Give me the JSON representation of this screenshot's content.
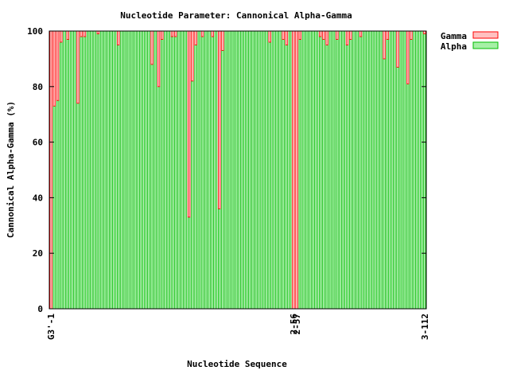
{
  "chart_data": {
    "type": "bar",
    "stacked": true,
    "title": "Nucleotide Parameter: Cannonical Alpha-Gamma",
    "xlabel": "Nucleotide Sequence",
    "ylabel": "Cannonical Alpha-Gamma (%)",
    "ylim": [
      0,
      100
    ],
    "yticks": [
      "0",
      "20",
      "40",
      "60",
      "80",
      "100"
    ],
    "grid": false,
    "legend_position": "top-right, outside plot",
    "xtick_labels": [
      "G3'-1",
      "2-56",
      "2-57",
      "3-112"
    ],
    "categories_count": 112,
    "series": [
      {
        "name": "Gamma",
        "color": "#ff0000",
        "fill": "#ffc0c0",
        "values": [
          100,
          27,
          25,
          4,
          0,
          3,
          0,
          0,
          26,
          2,
          2,
          0,
          0,
          0,
          1,
          0,
          0,
          0,
          0,
          0,
          5,
          0,
          0,
          0,
          0,
          0,
          0,
          0,
          0,
          0,
          12,
          0,
          20,
          3,
          0,
          0,
          2,
          2,
          0,
          0,
          0,
          67,
          18,
          5,
          0,
          2,
          0,
          0,
          2,
          0,
          64,
          7,
          0,
          0,
          0,
          0,
          0,
          0,
          0,
          0,
          0,
          0,
          0,
          0,
          0,
          4,
          0,
          0,
          0,
          3,
          5,
          0,
          100,
          100,
          3,
          0,
          0,
          0,
          0,
          0,
          2,
          3,
          5,
          0,
          0,
          3,
          0,
          0,
          5,
          3,
          0,
          0,
          2,
          0,
          0,
          0,
          0,
          0,
          0,
          10,
          3,
          0,
          0,
          13,
          0,
          0,
          19,
          3,
          0,
          0,
          0,
          1
        ]
      },
      {
        "name": "Alpha",
        "color": "#00bb00",
        "fill": "#a6f0a6",
        "values": [
          0,
          73,
          75,
          96,
          100,
          97,
          100,
          100,
          74,
          98,
          98,
          100,
          100,
          100,
          99,
          100,
          100,
          100,
          100,
          100,
          95,
          100,
          100,
          100,
          100,
          100,
          100,
          100,
          100,
          100,
          88,
          100,
          80,
          97,
          100,
          100,
          98,
          98,
          100,
          100,
          100,
          33,
          82,
          95,
          100,
          98,
          100,
          100,
          98,
          100,
          36,
          93,
          100,
          100,
          100,
          100,
          100,
          100,
          100,
          100,
          100,
          100,
          100,
          100,
          100,
          96,
          100,
          100,
          100,
          97,
          95,
          100,
          0,
          0,
          97,
          100,
          100,
          100,
          100,
          100,
          98,
          97,
          95,
          100,
          100,
          97,
          100,
          100,
          95,
          97,
          100,
          100,
          98,
          100,
          100,
          100,
          100,
          100,
          100,
          90,
          97,
          100,
          100,
          87,
          100,
          100,
          81,
          97,
          100,
          100,
          100,
          99
        ]
      }
    ]
  }
}
